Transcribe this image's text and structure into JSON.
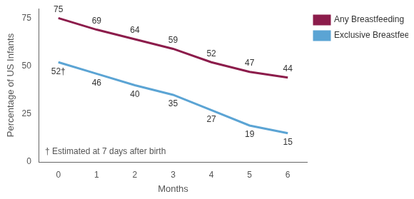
{
  "chart_data": {
    "type": "line",
    "x_label": "Months",
    "y_label": "Percentage of US Infants",
    "annotation": "† Estimated at 7 days after birth",
    "categories": [
      "0",
      "1",
      "2",
      "3",
      "4",
      "5",
      "6"
    ],
    "series": [
      {
        "name": "Any Breastfeeding",
        "color": "#8c1c4b",
        "marker": "none",
        "values": [
          75,
          69,
          64,
          59,
          52,
          47,
          44
        ]
      },
      {
        "name": "Exclusive Breastfeeding*",
        "color": "#5ba4d4",
        "marker": "none",
        "values": [
          52,
          46,
          40,
          35,
          27,
          19,
          15
        ],
        "value_labels": [
          "52†",
          "46",
          "40",
          "35",
          "27",
          "19",
          "15"
        ]
      }
    ],
    "ylim": [
      0,
      80
    ],
    "yticks": [
      0,
      25,
      50,
      75
    ],
    "grid": false,
    "legend": "top-right",
    "data_labels": true
  }
}
